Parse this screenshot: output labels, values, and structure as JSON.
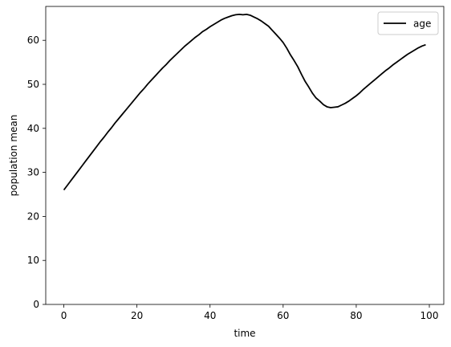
{
  "chart_data": {
    "type": "line",
    "xlabel": "time",
    "ylabel": "population mean",
    "xlim": [
      -4.95,
      103.95
    ],
    "ylim": [
      0,
      67.7
    ],
    "xticks": [
      0,
      20,
      40,
      60,
      80,
      100
    ],
    "yticks": [
      0,
      10,
      20,
      30,
      40,
      50,
      60
    ],
    "grid": false,
    "legend_position": "top-right",
    "series": [
      {
        "name": "age",
        "color": "#000000",
        "x": [
          0,
          1,
          2,
          3,
          4,
          5,
          6,
          7,
          8,
          9,
          10,
          11,
          12,
          13,
          14,
          15,
          16,
          17,
          18,
          19,
          20,
          21,
          22,
          23,
          24,
          25,
          26,
          27,
          28,
          29,
          30,
          31,
          32,
          33,
          34,
          35,
          36,
          37,
          38,
          39,
          40,
          41,
          42,
          43,
          44,
          45,
          46,
          47,
          48,
          49,
          50,
          51,
          52,
          53,
          54,
          55,
          56,
          57,
          58,
          59,
          60,
          61,
          62,
          63,
          64,
          65,
          66,
          67,
          68,
          69,
          70,
          71,
          72,
          73,
          74,
          75,
          76,
          77,
          78,
          79,
          80,
          81,
          82,
          83,
          84,
          85,
          86,
          87,
          88,
          89,
          90,
          91,
          92,
          93,
          94,
          95,
          96,
          97,
          98,
          99
        ],
        "y": [
          26.0,
          27.1,
          28.2,
          29.3,
          30.4,
          31.5,
          32.6,
          33.7,
          34.8,
          35.9,
          37.0,
          38.0,
          39.1,
          40.1,
          41.2,
          42.2,
          43.2,
          44.2,
          45.2,
          46.2,
          47.2,
          48.2,
          49.1,
          50.1,
          51.0,
          51.9,
          52.8,
          53.7,
          54.5,
          55.4,
          56.2,
          57.0,
          57.8,
          58.6,
          59.3,
          60.0,
          60.7,
          61.3,
          62.0,
          62.5,
          63.1,
          63.6,
          64.1,
          64.6,
          65.0,
          65.3,
          65.6,
          65.8,
          65.9,
          65.8,
          65.9,
          65.7,
          65.3,
          64.9,
          64.4,
          63.8,
          63.2,
          62.3,
          61.4,
          60.5,
          59.5,
          58.2,
          56.7,
          55.4,
          54.0,
          52.3,
          50.7,
          49.4,
          48.0,
          46.9,
          46.2,
          45.4,
          44.9,
          44.7,
          44.8,
          44.9,
          45.3,
          45.7,
          46.2,
          46.8,
          47.4,
          48.1,
          48.9,
          49.6,
          50.3,
          51.0,
          51.7,
          52.4,
          53.1,
          53.7,
          54.4,
          55.0,
          55.6,
          56.2,
          56.8,
          57.3,
          57.8,
          58.3,
          58.7,
          59.0
        ]
      }
    ]
  }
}
